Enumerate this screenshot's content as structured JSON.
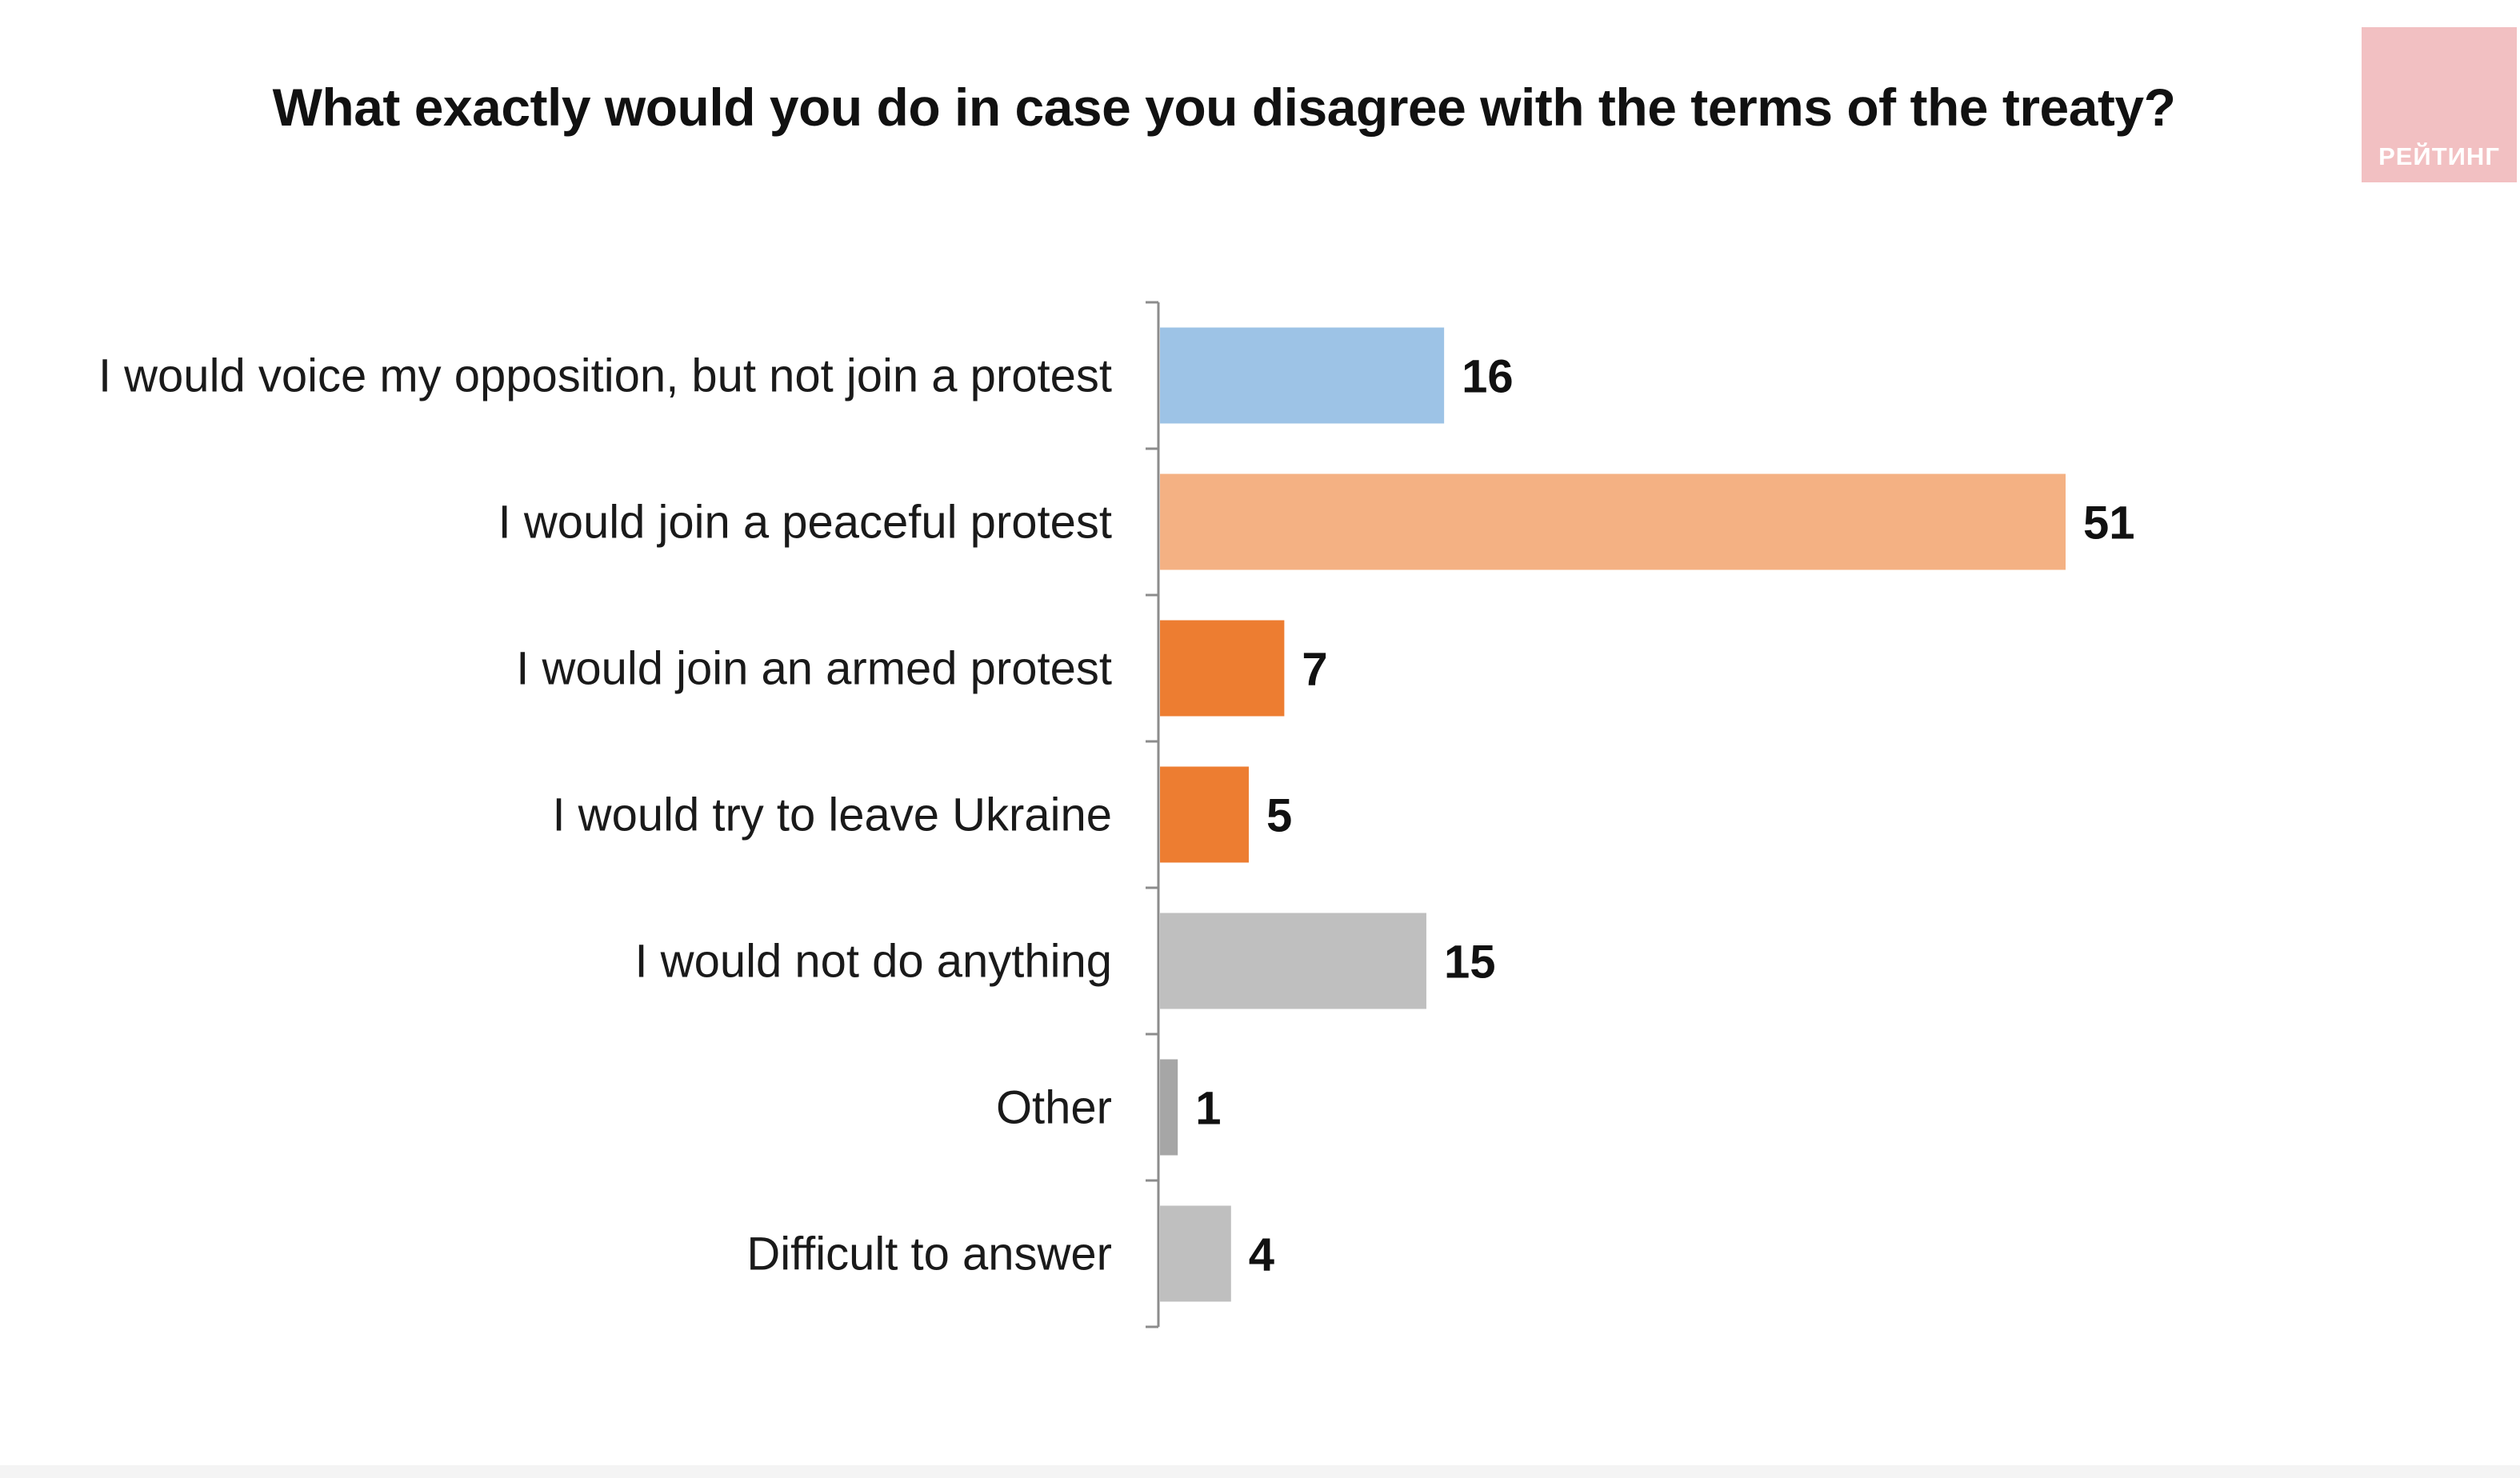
{
  "chart_data": {
    "type": "bar",
    "orientation": "horizontal",
    "title": "What exactly would you do in case you disagree with the terms of the treaty?",
    "categories": [
      "I would voice my opposition, but not join a protest",
      "I would join a peaceful protest",
      "I would join an armed protest",
      "I would try to leave Ukraine",
      "I would not do anything",
      "Other",
      "Difficult to answer"
    ],
    "values": [
      16,
      51,
      7,
      5,
      15,
      1,
      4
    ],
    "value_labels": [
      "16",
      "51",
      "7",
      "5",
      "15",
      "1",
      "4"
    ],
    "colors": [
      "#9dc3e6",
      "#f4b183",
      "#ed7d31",
      "#ed7d31",
      "#bfbfbf",
      "#a6a6a6",
      "#bfbfbf"
    ],
    "xlim": [
      0,
      51
    ],
    "grid": false,
    "legend": "none",
    "xlabel": "",
    "ylabel": ""
  },
  "brand": {
    "logo_text": "РЕЙТИНГ",
    "logo_color": "#f2c0c2"
  }
}
